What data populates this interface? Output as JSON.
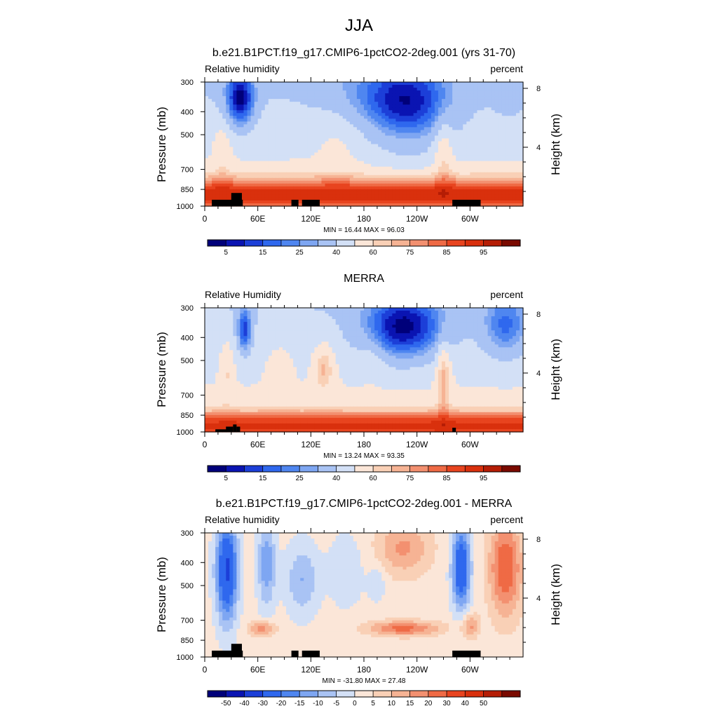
{
  "figure": {
    "title": "JJA"
  },
  "colors": {
    "rh_levels": [
      "#00007a",
      "#0a14b2",
      "#1c3fd8",
      "#2f68ee",
      "#4f86f0",
      "#7ea6f2",
      "#a9c3f4",
      "#d3e0f6",
      "#fbe6d8",
      "#f9d0b6",
      "#f6b394",
      "#f39070",
      "#ef6a45",
      "#e8441f",
      "#d9300d",
      "#b51d05",
      "#7a0a00"
    ],
    "diff_levels": [
      "#00007a",
      "#0a14b2",
      "#1c3fd8",
      "#2f68ee",
      "#4f86f0",
      "#7ea6f2",
      "#a9c3f4",
      "#d3e0f6",
      "#fbe6d8",
      "#f9d0b6",
      "#f6b394",
      "#f39070",
      "#ef6a45",
      "#e8441f",
      "#d9300d",
      "#b51d05",
      "#7a0a00"
    ],
    "terrain": "#000000"
  },
  "chart_data": [
    {
      "type": "heatmap",
      "title": "b.e21.B1PCT.f19_g17.CMIP6-1pctCO2-2deg.001 (yrs 31-70)",
      "left_string": "Relative humidity",
      "right_string": "percent",
      "ylabel": "Pressure (mb)",
      "ylabel_right": "Height (km)",
      "x_tick_labels": [
        "0",
        "60E",
        "120E",
        "180",
        "120W",
        "60W"
      ],
      "x_tick_lons": [
        0,
        60,
        120,
        180,
        240,
        300
      ],
      "xlim": [
        0,
        360
      ],
      "y_tick_labels": [
        "300",
        "400",
        "500",
        "700",
        "850",
        "1000"
      ],
      "y_ticks": [
        300,
        400,
        500,
        700,
        850,
        1000
      ],
      "ylim": [
        1000,
        300
      ],
      "y_scale": "log",
      "right_tick_labels": [
        "8",
        "4"
      ],
      "right_ticks_km": [
        8,
        4
      ],
      "min_max": "MIN =  16.44  MAX =  96.03",
      "colorbar_labels": [
        "5",
        "15",
        "25",
        "40",
        "60",
        "75",
        "85",
        "95"
      ],
      "colorbar_levels": [
        5,
        10,
        15,
        20,
        25,
        30,
        40,
        50,
        60,
        65,
        70,
        75,
        80,
        85,
        90,
        95
      ],
      "field": "model",
      "terrain_blocks": [
        [
          8,
          40,
          940
        ],
        [
          30,
          42,
          880
        ],
        [
          40,
          43,
          940
        ],
        [
          98,
          106,
          940
        ],
        [
          110,
          130,
          940
        ],
        [
          280,
          312,
          940
        ]
      ]
    },
    {
      "type": "heatmap",
      "title": "MERRA",
      "left_string": "Relative Humidity",
      "right_string": "percent",
      "ylabel": "Pressure (mb)",
      "ylabel_right": "Height (km)",
      "x_tick_labels": [
        "0",
        "60E",
        "120E",
        "180",
        "120W",
        "60W"
      ],
      "x_tick_lons": [
        0,
        60,
        120,
        180,
        240,
        300
      ],
      "xlim": [
        0,
        360
      ],
      "y_tick_labels": [
        "300",
        "400",
        "500",
        "700",
        "850",
        "1000"
      ],
      "y_ticks": [
        300,
        400,
        500,
        700,
        850,
        1000
      ],
      "ylim": [
        1000,
        300
      ],
      "y_scale": "log",
      "right_tick_labels": [
        "8",
        "4"
      ],
      "right_ticks_km": [
        8,
        4
      ],
      "min_max": "MIN =  13.24  MAX =  93.35",
      "colorbar_labels": [
        "5",
        "15",
        "25",
        "40",
        "60",
        "75",
        "85",
        "95"
      ],
      "colorbar_levels": [
        5,
        10,
        15,
        20,
        25,
        30,
        40,
        50,
        60,
        65,
        70,
        75,
        80,
        85,
        90,
        95
      ],
      "field": "obs",
      "terrain_blocks": [
        [
          12,
          28,
          975
        ],
        [
          24,
          32,
          950
        ],
        [
          32,
          36,
          930
        ],
        [
          36,
          40,
          950
        ],
        [
          280,
          284,
          960
        ]
      ]
    },
    {
      "type": "heatmap",
      "title": "b.e21.B1PCT.f19_g17.CMIP6-1pctCO2-2deg.001 - MERRA",
      "left_string": "Relative humidity",
      "right_string": "percent",
      "ylabel": "Pressure (mb)",
      "ylabel_right": "Height (km)",
      "x_tick_labels": [
        "0",
        "60E",
        "120E",
        "180",
        "120W",
        "60W"
      ],
      "x_tick_lons": [
        0,
        60,
        120,
        180,
        240,
        300
      ],
      "xlim": [
        0,
        360
      ],
      "y_tick_labels": [
        "300",
        "400",
        "500",
        "700",
        "850",
        "1000"
      ],
      "y_ticks": [
        300,
        400,
        500,
        700,
        850,
        1000
      ],
      "ylim": [
        1000,
        300
      ],
      "y_scale": "log",
      "right_tick_labels": [
        "8",
        "4"
      ],
      "right_ticks_km": [
        8,
        4
      ],
      "min_max": "MIN = -31.80  MAX =  27.48",
      "colorbar_labels": [
        "-50",
        "-40",
        "-30",
        "-20",
        "-15",
        "-10",
        "-5",
        "0",
        "5",
        "10",
        "15",
        "20",
        "30",
        "40",
        "50"
      ],
      "colorbar_levels": [
        -50,
        -40,
        -30,
        -20,
        -15,
        -10,
        -5,
        0,
        5,
        10,
        15,
        20,
        30,
        40,
        50
      ],
      "field": "diff",
      "terrain_blocks": [
        [
          8,
          40,
          940
        ],
        [
          30,
          42,
          880
        ],
        [
          40,
          43,
          940
        ],
        [
          98,
          106,
          940
        ],
        [
          110,
          130,
          940
        ],
        [
          280,
          312,
          940
        ]
      ]
    }
  ]
}
